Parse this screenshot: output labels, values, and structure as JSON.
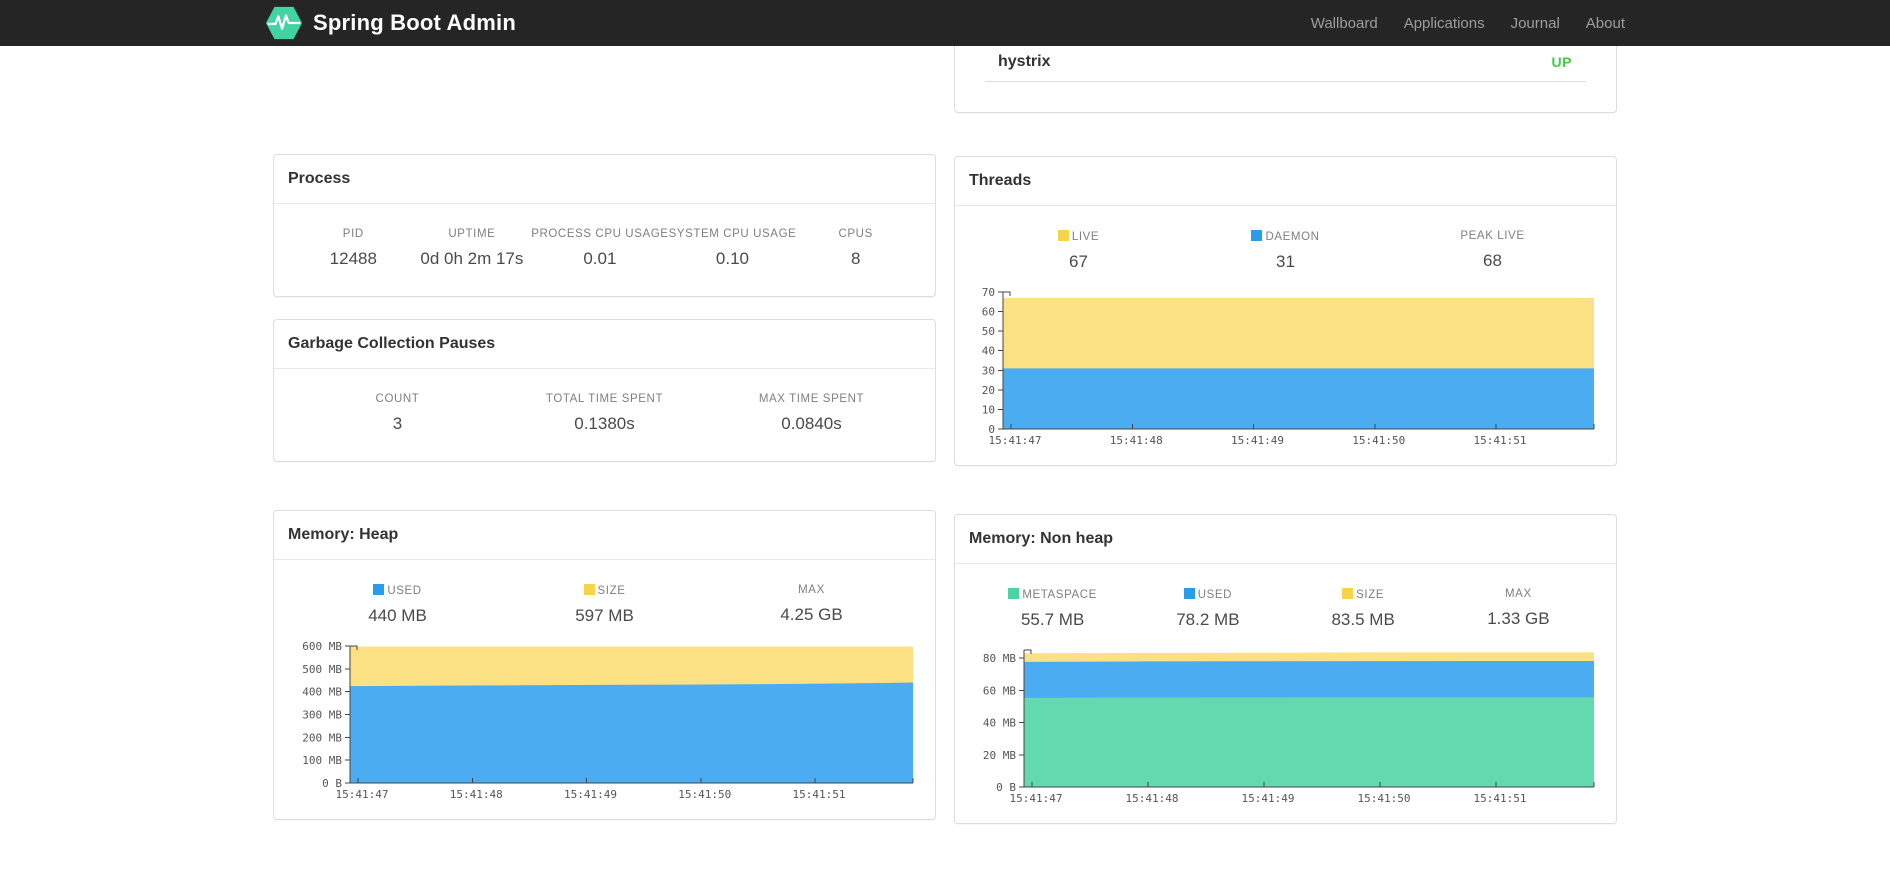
{
  "navbar": {
    "brand": "Spring Boot Admin",
    "items": [
      {
        "label": "Wallboard"
      },
      {
        "label": "Applications"
      },
      {
        "label": "Journal"
      },
      {
        "label": "About"
      }
    ]
  },
  "application_row": {
    "name": "hystrix",
    "status": "UP",
    "status_color": "#3fce3f"
  },
  "cards": {
    "process": {
      "title": "Process",
      "stats": [
        {
          "label": "PID",
          "value": "12488"
        },
        {
          "label": "UPTIME",
          "value": "0d 0h 2m 17s"
        },
        {
          "label": "PROCESS CPU USAGE",
          "value": "0.01"
        },
        {
          "label": "SYSTEM CPU USAGE",
          "value": "0.10"
        },
        {
          "label": "CPUS",
          "value": "8"
        }
      ]
    },
    "gc": {
      "title": "Garbage Collection Pauses",
      "stats": [
        {
          "label": "COUNT",
          "value": "3"
        },
        {
          "label": "TOTAL TIME SPENT",
          "value": "0.1380s"
        },
        {
          "label": "MAX TIME SPENT",
          "value": "0.0840s"
        }
      ]
    },
    "threads": {
      "title": "Threads",
      "stats": [
        {
          "label": "LIVE",
          "value": "67",
          "swatch": "#f6d449"
        },
        {
          "label": "DAEMON",
          "value": "31",
          "swatch": "#2b9beb"
        },
        {
          "label": "PEAK LIVE",
          "value": "68"
        }
      ]
    },
    "heap": {
      "title": "Memory: Heap",
      "stats": [
        {
          "label": "USED",
          "value": "440 MB",
          "swatch": "#2b9beb"
        },
        {
          "label": "SIZE",
          "value": "597 MB",
          "swatch": "#f6d449"
        },
        {
          "label": "MAX",
          "value": "4.25 GB"
        }
      ]
    },
    "nonheap": {
      "title": "Memory: Non heap",
      "stats": [
        {
          "label": "METASPACE",
          "value": "55.7 MB",
          "swatch": "#4cd3a2"
        },
        {
          "label": "USED",
          "value": "78.2 MB",
          "swatch": "#2b9beb"
        },
        {
          "label": "SIZE",
          "value": "83.5 MB",
          "swatch": "#f6d449"
        },
        {
          "label": "MAX",
          "value": "1.33 GB"
        }
      ]
    }
  },
  "chart_data": [
    {
      "id": "threads",
      "type": "area",
      "title": "Threads",
      "stacked": true,
      "ylim": [
        0,
        70
      ],
      "grid": false,
      "y_ticks": [
        {
          "value": 0,
          "label": "0"
        },
        {
          "value": 10,
          "label": "10"
        },
        {
          "value": 20,
          "label": "20"
        },
        {
          "value": 30,
          "label": "30"
        },
        {
          "value": 40,
          "label": "40"
        },
        {
          "value": 50,
          "label": "50"
        },
        {
          "value": 60,
          "label": "60"
        },
        {
          "value": 70,
          "label": "70"
        }
      ],
      "x_labels": [
        "15:41:47",
        "15:41:48",
        "15:41:49",
        "15:41:50",
        "15:41:51"
      ],
      "series": [
        {
          "name": "LIVE",
          "color": "#fbe183",
          "values": [
            67,
            67,
            67,
            67,
            67,
            67
          ]
        },
        {
          "name": "DAEMON",
          "color": "#4cacf1",
          "values": [
            31,
            31,
            31,
            31,
            31,
            31
          ]
        }
      ]
    },
    {
      "id": "heap",
      "type": "area",
      "title": "Memory: Heap",
      "stacked": true,
      "ylim": [
        0,
        600
      ],
      "grid": false,
      "y_ticks": [
        {
          "value": 0,
          "label": "0 B"
        },
        {
          "value": 100,
          "label": "100 MB"
        },
        {
          "value": 200,
          "label": "200 MB"
        },
        {
          "value": 300,
          "label": "300 MB"
        },
        {
          "value": 400,
          "label": "400 MB"
        },
        {
          "value": 500,
          "label": "500 MB"
        },
        {
          "value": 600,
          "label": "600 MB"
        }
      ],
      "x_labels": [
        "15:41:47",
        "15:41:48",
        "15:41:49",
        "15:41:50",
        "15:41:51"
      ],
      "series": [
        {
          "name": "SIZE",
          "color": "#fbe183",
          "values": [
            597,
            597,
            597,
            597,
            597,
            597
          ]
        },
        {
          "name": "USED",
          "color": "#4cacf1",
          "values": [
            424,
            427,
            429,
            431,
            434,
            440
          ]
        }
      ]
    },
    {
      "id": "nonheap",
      "type": "area",
      "title": "Memory: Non heap",
      "stacked": true,
      "ylim": [
        0,
        85
      ],
      "grid": false,
      "y_ticks": [
        {
          "value": 0,
          "label": "0 B"
        },
        {
          "value": 20,
          "label": "20 MB"
        },
        {
          "value": 40,
          "label": "40 MB"
        },
        {
          "value": 60,
          "label": "60 MB"
        },
        {
          "value": 80,
          "label": "80 MB"
        }
      ],
      "x_labels": [
        "15:41:47",
        "15:41:48",
        "15:41:49",
        "15:41:50",
        "15:41:51"
      ],
      "series": [
        {
          "name": "SIZE",
          "color": "#fbe183",
          "values": [
            83,
            83.2,
            83.3,
            83.5,
            83.5,
            83.5
          ]
        },
        {
          "name": "USED",
          "color": "#4cacf1",
          "values": [
            77.6,
            77.9,
            78,
            78.1,
            78.2,
            78.2
          ]
        },
        {
          "name": "METASPACE",
          "color": "#62d9ae",
          "values": [
            55.4,
            55.5,
            55.6,
            55.7,
            55.7,
            55.7
          ]
        }
      ]
    }
  ]
}
